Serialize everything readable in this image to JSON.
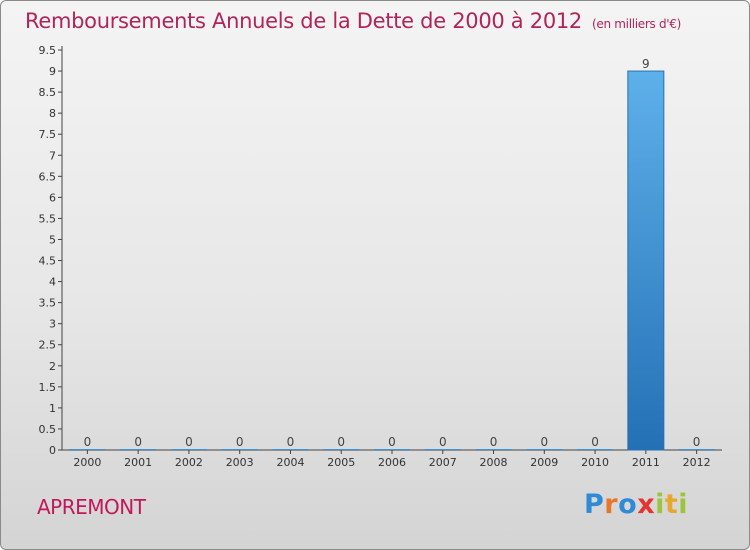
{
  "title": "Remboursements Annuels de la Dette de 2000 à 2012",
  "subtitle": "(en milliers d'€)",
  "commune": "APREMONT",
  "logo": {
    "letters": [
      "P",
      "r",
      "o",
      "x",
      "i",
      "t",
      "i"
    ],
    "colors": [
      "#2f8ad8",
      "#e8762d",
      "#2f8ad8",
      "#e3342f",
      "#9bc53d",
      "#e8a82d",
      "#9bc53d"
    ]
  },
  "chart_data": {
    "type": "bar",
    "title": "Remboursements Annuels de la Dette de 2000 à 2012",
    "ylabel": "en milliers d'€",
    "xlabel": "",
    "categories": [
      "2000",
      "2001",
      "2002",
      "2003",
      "2004",
      "2005",
      "2006",
      "2007",
      "2008",
      "2009",
      "2010",
      "2011",
      "2012"
    ],
    "values": [
      0,
      0,
      0,
      0,
      0,
      0,
      0,
      0,
      0,
      0,
      0,
      9,
      0
    ],
    "ylim": [
      0,
      9.5
    ],
    "yticks": [
      "0",
      "0.5",
      "1",
      "1.5",
      "2",
      "2.5",
      "3",
      "3.5",
      "4",
      "4.5",
      "5",
      "5.5",
      "6",
      "6.5",
      "7",
      "7.5",
      "8",
      "8.5",
      "9",
      "9.5"
    ],
    "bar_color": "#3d93d6"
  }
}
